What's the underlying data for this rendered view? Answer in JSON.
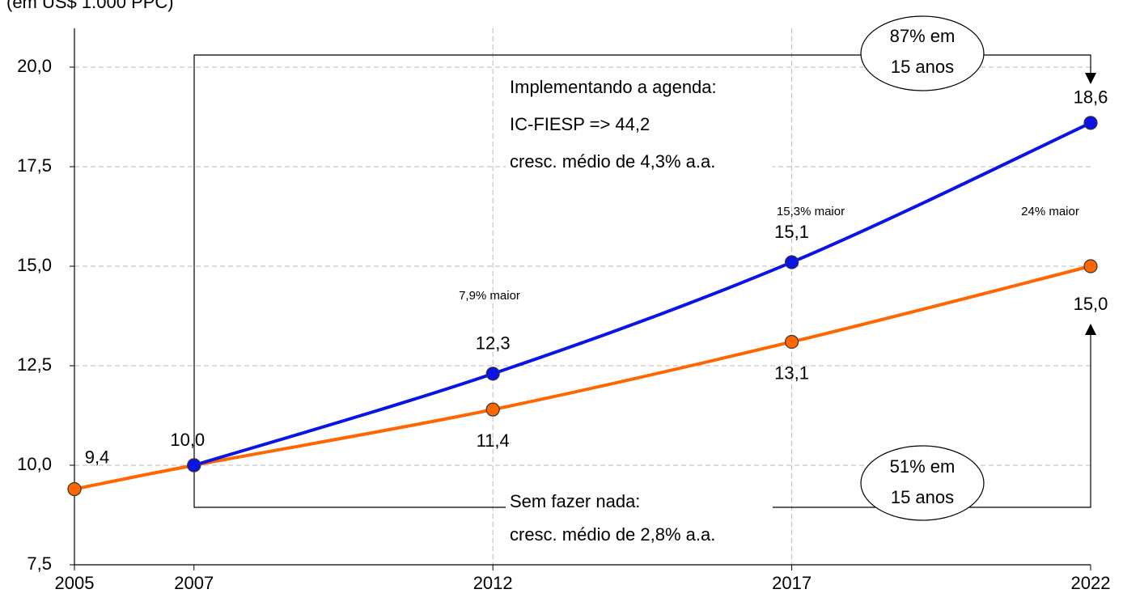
{
  "chart_data": {
    "type": "line",
    "subtitle": "(em US$ 1.000 PPC)",
    "x": [
      2005,
      2007,
      2012,
      2017,
      2022
    ],
    "xlim": [
      2005,
      2022
    ],
    "xticks": [
      2005,
      2007,
      2012,
      2017,
      2022
    ],
    "ylim": [
      7.5,
      20
    ],
    "yticks": [
      {
        "value": 7.5,
        "label": "7,5"
      },
      {
        "value": 10,
        "label": "10,0"
      },
      {
        "value": 12.5,
        "label": "12,5"
      },
      {
        "value": 15,
        "label": "15,0"
      },
      {
        "value": 17.5,
        "label": "17,5"
      },
      {
        "value": 20,
        "label": "20,0"
      }
    ],
    "grid": true,
    "series": [
      {
        "name": "Sem fazer nada",
        "color": "#ff6600",
        "values": [
          9.4,
          10.0,
          11.4,
          13.1,
          15.0
        ],
        "value_labels": [
          "9,4",
          "10,0",
          "11,4",
          "13,1",
          "15,0"
        ]
      },
      {
        "name": "Implementando a agenda",
        "color": "#0a14e6",
        "values": [
          null,
          10.0,
          12.3,
          15.1,
          18.6
        ],
        "value_labels": [
          null,
          null,
          "12,3",
          "15,1",
          "18,6"
        ]
      }
    ],
    "annotations": [
      "Implementando a agenda:",
      "IC-FIESP => 44,2",
      "cresc. médio de 4,3% a.a.",
      "Sem fazer nada:",
      "cresc. médio de 2,8% a.a.",
      "87% em",
      "15 anos",
      "51% em",
      "15 anos",
      "7,9% maior",
      "15,3% maior",
      "24% maior"
    ]
  }
}
